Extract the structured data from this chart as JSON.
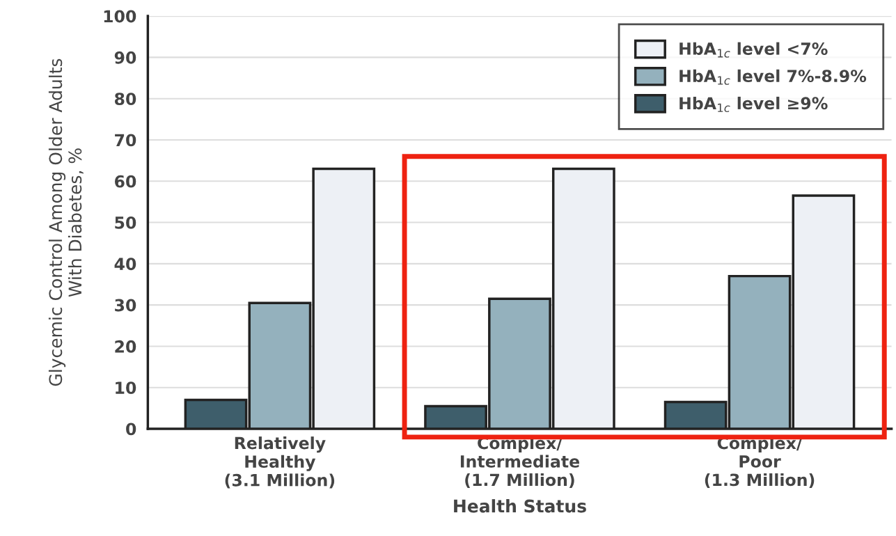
{
  "chart_data": {
    "type": "bar",
    "categories": [
      "Relatively\nHealthy\n(3.1 Million)",
      "Complex/\nIntermediate\n(1.7 Million)",
      "Complex/\nPoor\n(1.3 Million)"
    ],
    "series": [
      {
        "name": "HbA$_{1c}$ level ≥9%",
        "color": "#3e5e6b",
        "values": [
          7,
          5.5,
          6.5
        ]
      },
      {
        "name": "HbA$_{1c}$ level 7%-8.9%",
        "color": "#94b1bd",
        "values": [
          30.5,
          31.5,
          37
        ]
      },
      {
        "name": "HbA$_{1c}$ level <7%",
        "color": "#edf0f5",
        "values": [
          63,
          63,
          56.5
        ]
      }
    ],
    "xlabel": "Health Status",
    "ylabel": "Glycemic Control Among Older Adults\nWith Diabetes, %",
    "ylim": [
      0,
      100
    ],
    "yticks": [
      0,
      10,
      20,
      30,
      40,
      50,
      60,
      70,
      80,
      90,
      100
    ],
    "grid": "y",
    "legend": "top right"
  }
}
